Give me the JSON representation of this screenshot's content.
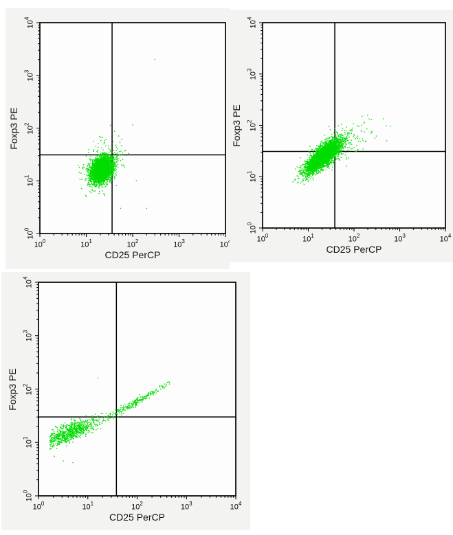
{
  "figure": {
    "background_color": "#ffffff",
    "panel_color": "#f3f3f1",
    "plot_background_color": "#fdfdfd",
    "axis_color": "#000000",
    "gate_color": "#000000",
    "dot_color": "#00dc00"
  },
  "chart_data": [
    {
      "type": "scatter",
      "name": "top-left-dot-plot",
      "xlabel": "CD25 PerCP",
      "ylabel": "Foxp3 PE",
      "xscale": "log",
      "yscale": "log",
      "xlim": [
        1,
        10000
      ],
      "ylim": [
        1,
        10000
      ],
      "x_ticks": [
        "10^0",
        "10^1",
        "10^2",
        "10^3",
        "10^4"
      ],
      "y_ticks": [
        "10^0",
        "10^1",
        "10^2",
        "10^3",
        "10^4"
      ],
      "grid": false,
      "quadrant_gate": {
        "x": 36,
        "y": 31
      },
      "n_points": 3800,
      "clusters_log10": [
        {
          "shape": "gauss",
          "weight": 0.94,
          "cx": 1.33,
          "cy": 1.21,
          "sx": 0.115,
          "sy": 0.12,
          "rho": 0.3
        },
        {
          "shape": "gauss",
          "weight": 0.06,
          "cx": 1.4,
          "cy": 1.28,
          "sx": 0.24,
          "sy": 0.26,
          "rho": 0.25
        }
      ],
      "outlier_points": [
        [
          300,
          2000
        ],
        [
          200,
          3
        ],
        [
          100,
          115
        ],
        [
          120,
          10
        ],
        [
          55,
          3
        ]
      ],
      "description": "Single round dense population centered near CD25=21, Foxp3=16, mostly in lower-left quadrant; one event near (300,2000)."
    },
    {
      "type": "scatter",
      "name": "top-right-dot-plot",
      "xlabel": "CD25 PerCP",
      "ylabel": "Foxp3 PE",
      "xscale": "log",
      "yscale": "log",
      "xlim": [
        1,
        10000
      ],
      "ylim": [
        1,
        10000
      ],
      "x_ticks": [
        "10^0",
        "10^1",
        "10^2",
        "10^3",
        "10^4"
      ],
      "y_ticks": [
        "10^0",
        "10^1",
        "10^2",
        "10^3",
        "10^4"
      ],
      "grid": false,
      "quadrant_gate": {
        "x": 38,
        "y": 31
      },
      "n_points": 4200,
      "clusters_log10": [
        {
          "shape": "gauss",
          "weight": 0.962,
          "cx": 1.33,
          "cy": 1.4,
          "sx": 0.185,
          "sy": 0.16,
          "rho": 0.78
        },
        {
          "shape": "gauss",
          "weight": 0.038,
          "cx": 1.85,
          "cy": 1.7,
          "sx": 0.3,
          "sy": 0.2,
          "rho": 0.55
        }
      ],
      "outlier_points": [
        [
          630,
          95
        ],
        [
          240,
          130
        ],
        [
          520,
          50
        ],
        [
          150,
          150
        ]
      ],
      "description": "Diagonally elongated correlated population centered near CD25=21, Foxp3=25 straddling the quadrant gate, with scattered double-positive events up to (600,150)."
    },
    {
      "type": "scatter",
      "name": "bottom-left-dot-plot",
      "xlabel": "CD25 PerCP",
      "ylabel": "Foxp3 PE",
      "xscale": "log",
      "yscale": "log",
      "xlim": [
        1,
        10000
      ],
      "ylim": [
        1,
        10000
      ],
      "x_ticks": [
        "10^0",
        "10^1",
        "10^2",
        "10^3",
        "10^4"
      ],
      "y_ticks": [
        "10^0",
        "10^1",
        "10^2",
        "10^3",
        "10^4"
      ],
      "grid": false,
      "quadrant_gate": {
        "x": 38,
        "y": 30
      },
      "n_points": 1000,
      "clusters_log10": [
        {
          "shape": "band",
          "weight": 0.76,
          "mx": 0.62,
          "sx": 0.3,
          "xmin": 0.23,
          "xmax": 1.6,
          "a": 1.0,
          "b": 0.25,
          "c": 0.065,
          "noise0": 0.1,
          "noise1": -0.02
        },
        {
          "shape": "band",
          "weight": 0.24,
          "mx": 1.95,
          "sx": 0.38,
          "xmin": 1.2,
          "xmax": 2.66,
          "a": 1.0,
          "b": 0.25,
          "c": 0.065,
          "noise0": 0.085,
          "noise1": -0.025
        }
      ],
      "outlier_points": [
        [
          16,
          160
        ],
        [
          3.2,
          4.5
        ],
        [
          5,
          4.2
        ],
        [
          2.1,
          5.5
        ]
      ],
      "description": "Sparse strongly correlated diagonal band rising from about (1.8,10) in the lower-left quadrant to a tight tail reaching (400,140) in the upper-right quadrant."
    }
  ]
}
